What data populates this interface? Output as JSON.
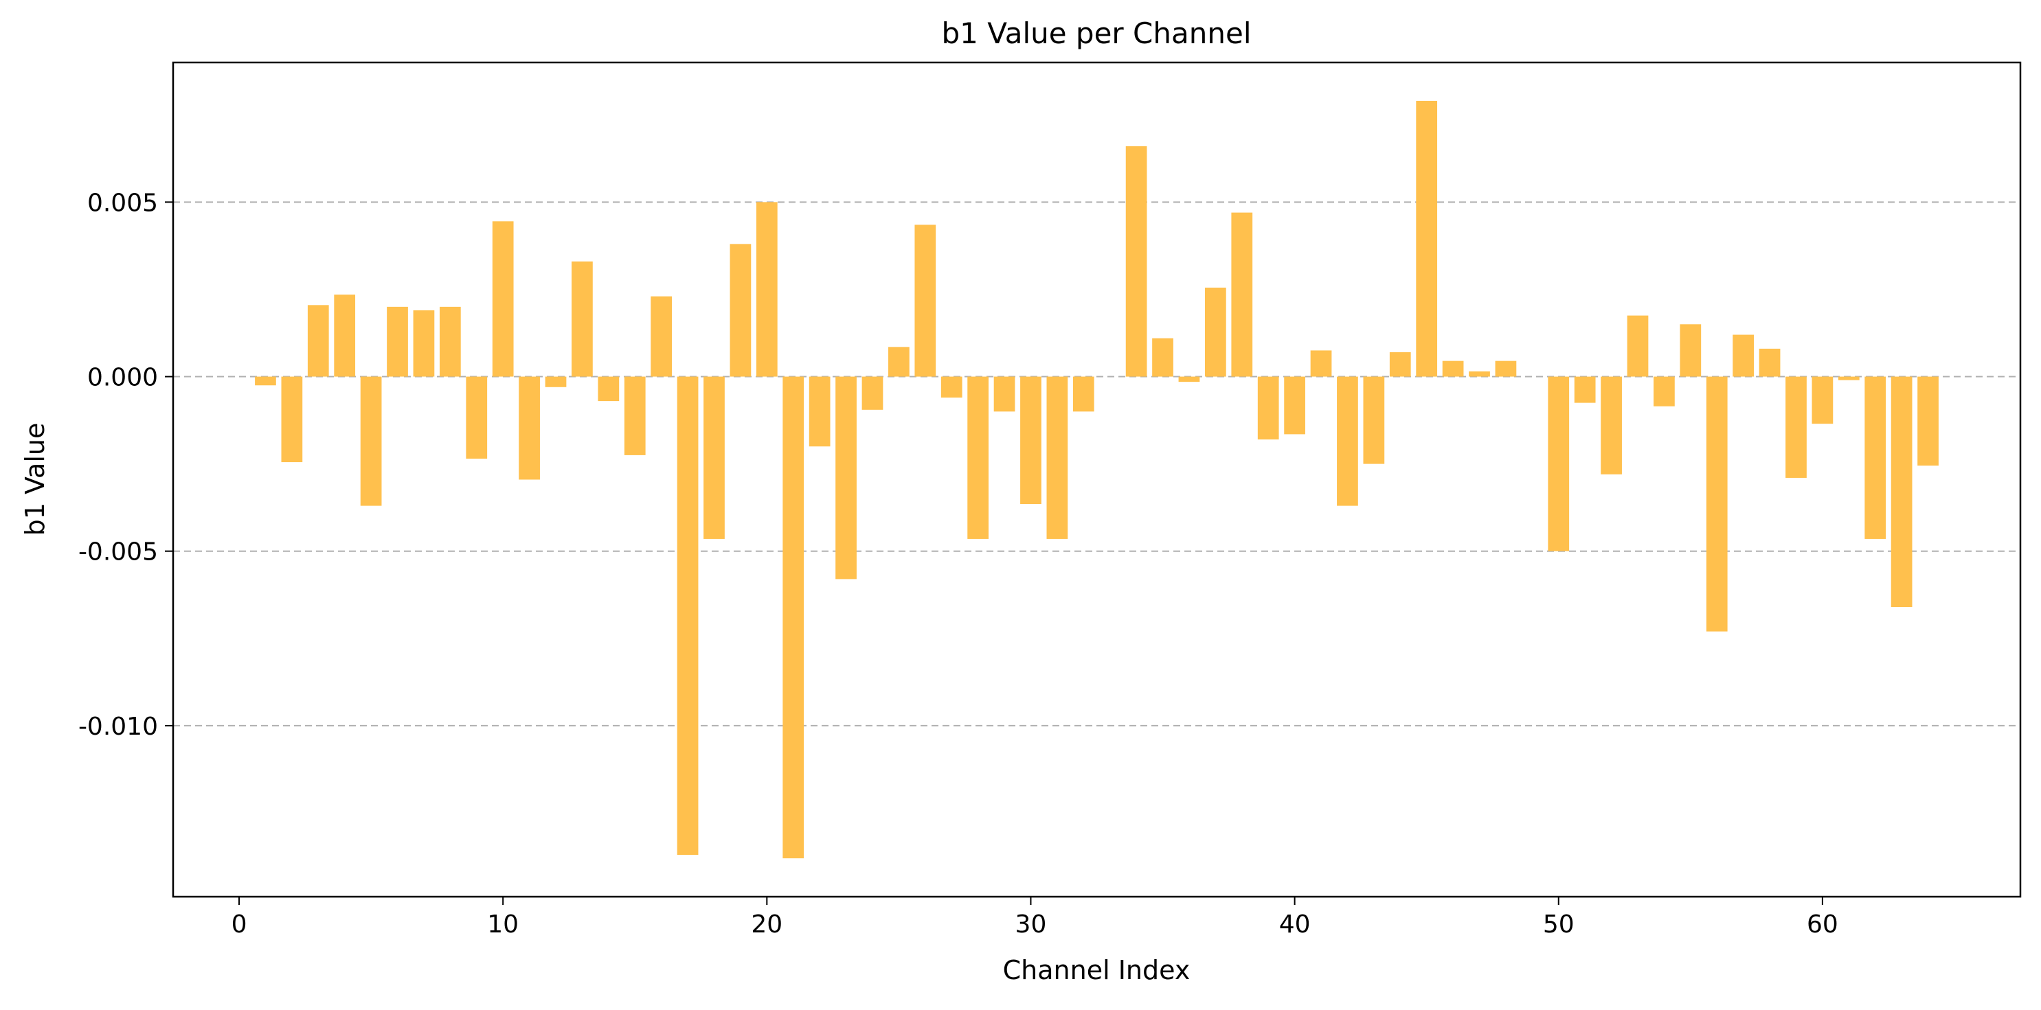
{
  "chart_data": {
    "type": "bar",
    "title": "b1 Value per Channel",
    "xlabel": "Channel Index",
    "ylabel": "b1 Value",
    "xlim": [
      -2.5,
      67.5
    ],
    "ylim": [
      -0.0149,
      0.009
    ],
    "x_ticks": [
      0,
      10,
      20,
      30,
      40,
      50,
      60
    ],
    "x_tick_labels": [
      "0",
      "10",
      "20",
      "30",
      "40",
      "50",
      "60"
    ],
    "y_ticks": [
      0.005,
      0.0,
      -0.005,
      -0.01
    ],
    "y_tick_labels": [
      "0.005",
      "0.000",
      "-0.005",
      "-0.010"
    ],
    "grid": "y-dashed",
    "bar_color": "#FFC04D",
    "categories": [
      0,
      1,
      2,
      3,
      4,
      5,
      6,
      7,
      8,
      9,
      10,
      11,
      12,
      13,
      14,
      15,
      16,
      17,
      18,
      19,
      20,
      21,
      22,
      23,
      24,
      25,
      26,
      27,
      28,
      29,
      30,
      31,
      32,
      33,
      34,
      35,
      36,
      37,
      38,
      39,
      40,
      41,
      42,
      43,
      44,
      45,
      46,
      47,
      48,
      49,
      50,
      51,
      52,
      53,
      54,
      55,
      56,
      57,
      58,
      59,
      60,
      61,
      62,
      63,
      64
    ],
    "values": [
      0.0,
      -0.00025,
      -0.00245,
      0.00205,
      0.00235,
      -0.0037,
      0.002,
      0.0019,
      0.002,
      -0.00235,
      0.00445,
      -0.00295,
      -0.0003,
      0.0033,
      -0.0007,
      -0.00225,
      0.0023,
      -0.0137,
      -0.00465,
      0.0038,
      0.005,
      -0.0138,
      -0.002,
      -0.0058,
      -0.00095,
      0.00085,
      0.00435,
      -0.0006,
      -0.00465,
      -0.001,
      -0.00365,
      -0.00465,
      -0.001,
      0.0,
      0.0066,
      0.0011,
      -0.00015,
      0.00255,
      0.0047,
      -0.0018,
      -0.00165,
      0.00075,
      -0.0037,
      -0.0025,
      0.0007,
      0.0079,
      0.00045,
      0.00015,
      0.00045,
      0.0,
      -0.005,
      -0.00075,
      -0.0028,
      0.00175,
      -0.00085,
      0.0015,
      -0.0073,
      0.0012,
      0.0008,
      -0.0029,
      -0.00135,
      -0.0001,
      -0.00465,
      -0.0066,
      -0.00255
    ]
  }
}
